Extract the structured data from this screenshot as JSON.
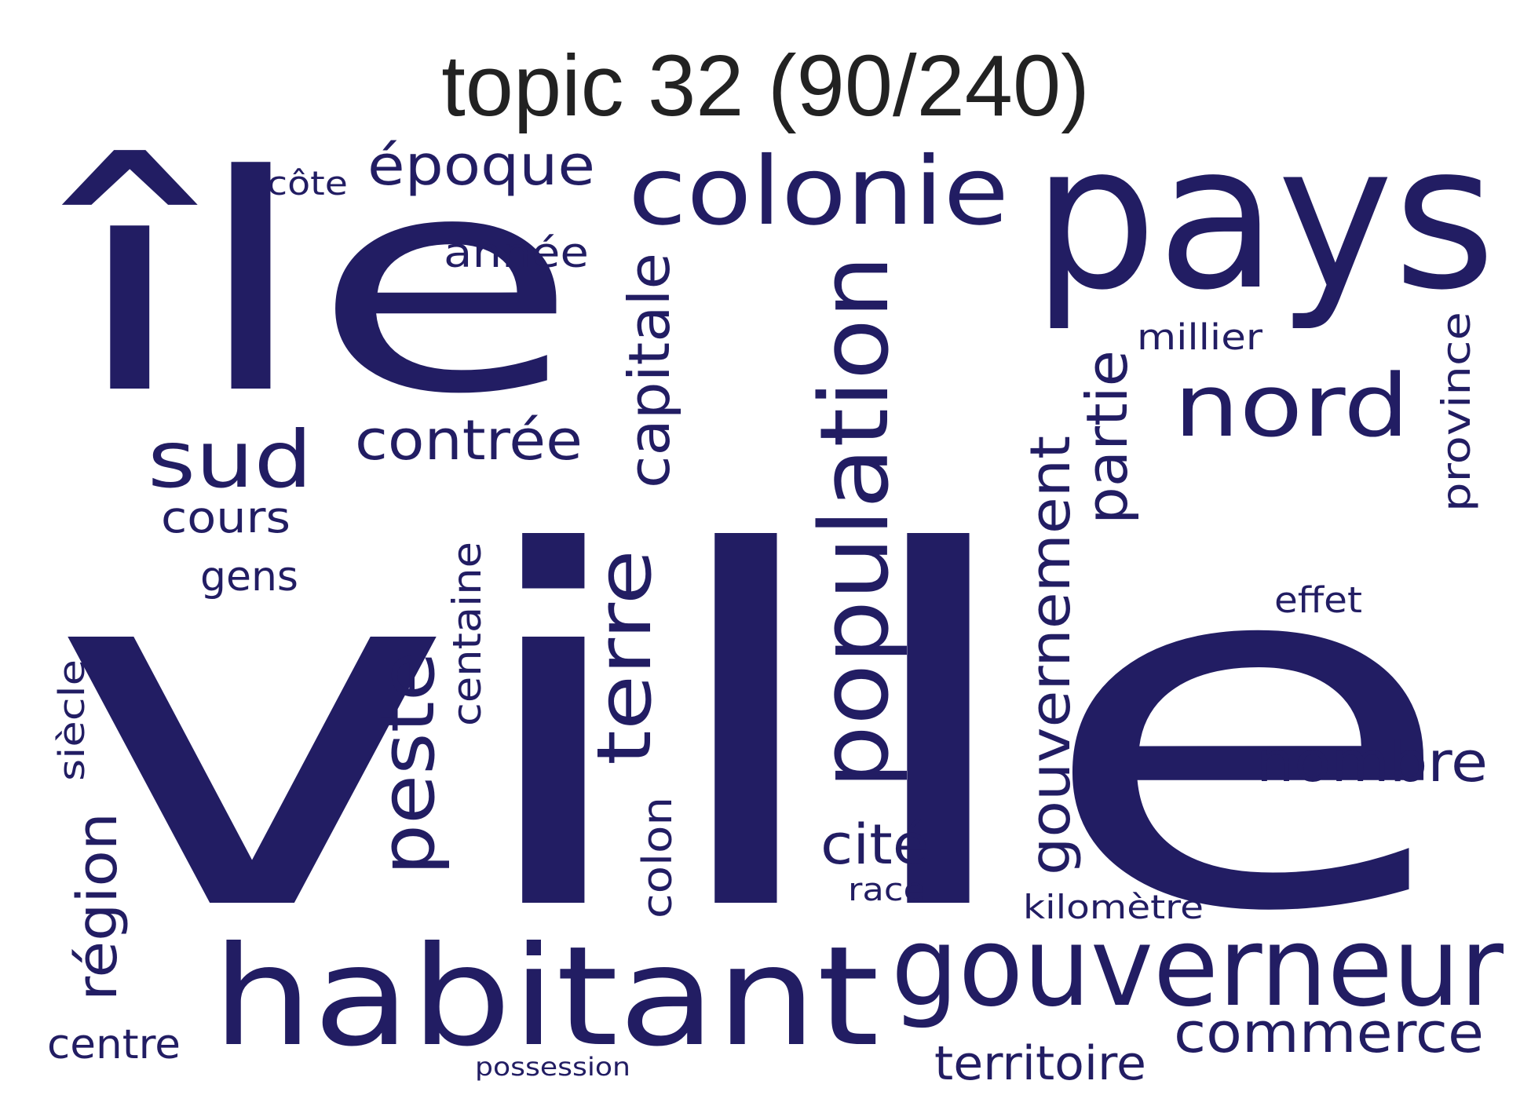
{
  "title": "topic 32 (90/240)",
  "word_color": "#221d63",
  "words": {
    "ville": "ville",
    "ile": "île",
    "pays": "pays",
    "habitant": "habitant",
    "gouverneur": "gouverneur",
    "colonie": "colonie",
    "population": "population",
    "nord": "nord",
    "terre": "terre",
    "peste": "peste",
    "sud": "sud",
    "epoque": "époque",
    "contree": "contrée",
    "capitale": "capitale",
    "commerce": "commerce",
    "nombre": "nombre",
    "partie": "partie",
    "gouvernement": "gouvernement",
    "region": "région",
    "cite": "cité",
    "territoire": "territoire",
    "province": "province",
    "annee": "année",
    "cours": "cours",
    "gens": "gens",
    "centaine": "centaine",
    "colon": "colon",
    "siecle": "siècle",
    "centre": "centre",
    "millier": "millier",
    "effet": "effet",
    "kilometre": "kilomètre",
    "cote": "côte",
    "race": "race",
    "possession": "possession"
  }
}
